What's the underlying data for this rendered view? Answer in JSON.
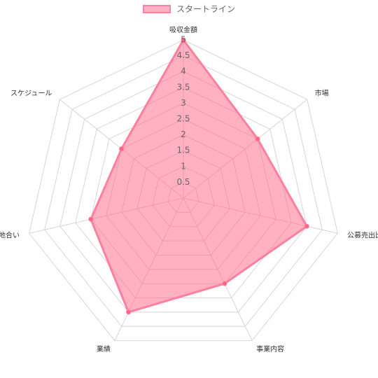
{
  "chart_data": {
    "type": "radar",
    "axes": [
      "吸収金額",
      "市場",
      "公募売出比",
      "事業内容",
      "業績",
      "地合い",
      "スケジュール"
    ],
    "series": [
      {
        "name": "スタートライン",
        "values": [
          5,
          3,
          4,
          3,
          4,
          3,
          2.5
        ],
        "fill_color": "#ff6384",
        "border_color": "#ff7f9e"
      }
    ],
    "r_ticks": [
      "0.5",
      "1",
      "1.5",
      "2",
      "2.5",
      "3",
      "3.5",
      "4",
      "4.5",
      "5"
    ],
    "r_range": [
      0,
      5
    ],
    "grid": true,
    "legend_position": "top"
  },
  "legend": {
    "label": "スタートライン"
  }
}
